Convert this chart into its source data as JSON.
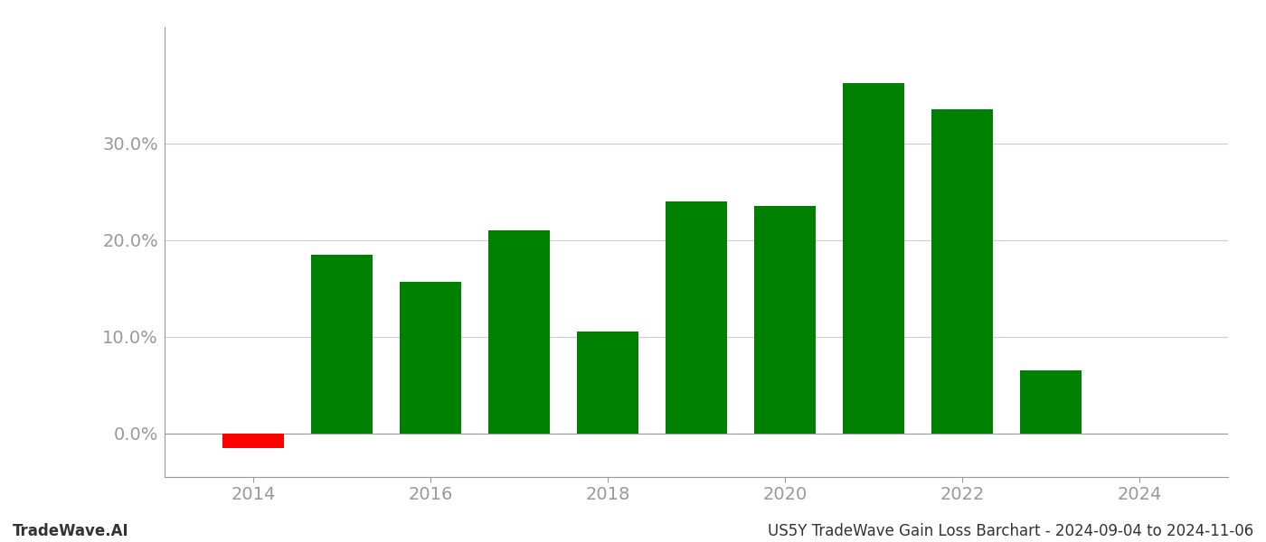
{
  "years": [
    2014,
    2015,
    2016,
    2017,
    2018,
    2019,
    2020,
    2021,
    2022,
    2023
  ],
  "values": [
    -1.5,
    18.5,
    15.7,
    21.0,
    10.5,
    24.0,
    23.5,
    36.2,
    33.5,
    6.5
  ],
  "colors": [
    "#ff0000",
    "#008000",
    "#008000",
    "#008000",
    "#008000",
    "#008000",
    "#008000",
    "#008000",
    "#008000",
    "#008000"
  ],
  "ylim_min": -4.5,
  "ylim_max": 42,
  "yticks": [
    0.0,
    10.0,
    20.0,
    30.0
  ],
  "xtick_labels": [
    "2014",
    "2016",
    "2018",
    "2020",
    "2022",
    "2024"
  ],
  "xtick_positions": [
    2014,
    2016,
    2018,
    2020,
    2022,
    2024
  ],
  "footer_left": "TradeWave.AI",
  "footer_right": "US5Y TradeWave Gain Loss Barchart - 2024-09-04 to 2024-11-06",
  "bar_width": 0.7,
  "background_color": "#ffffff",
  "grid_color": "#cccccc",
  "spine_color": "#999999",
  "tick_color": "#999999",
  "label_color": "#999999"
}
